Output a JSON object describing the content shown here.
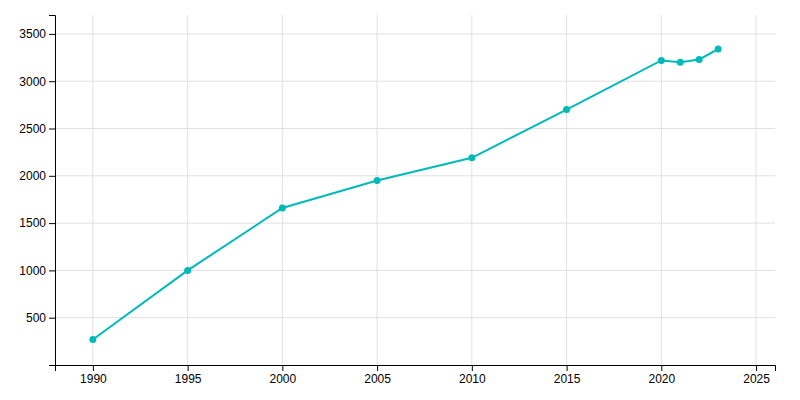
{
  "chart_data": {
    "type": "line",
    "x": [
      1990,
      1995,
      2000,
      2005,
      2010,
      2015,
      2020,
      2021,
      2022,
      2023
    ],
    "values": [
      270,
      1000,
      1660,
      1950,
      2190,
      2700,
      3220,
      3200,
      3230,
      3340
    ],
    "color": "#00BABA",
    "marker": "circle",
    "xlim": [
      1988,
      2026
    ],
    "ylim": [
      0,
      3700
    ],
    "xticks": [
      1990,
      1995,
      2000,
      2005,
      2010,
      2015,
      2020,
      2025
    ],
    "yticks": [
      500,
      1000,
      1500,
      2000,
      2500,
      3000,
      3500
    ],
    "grid": true
  }
}
